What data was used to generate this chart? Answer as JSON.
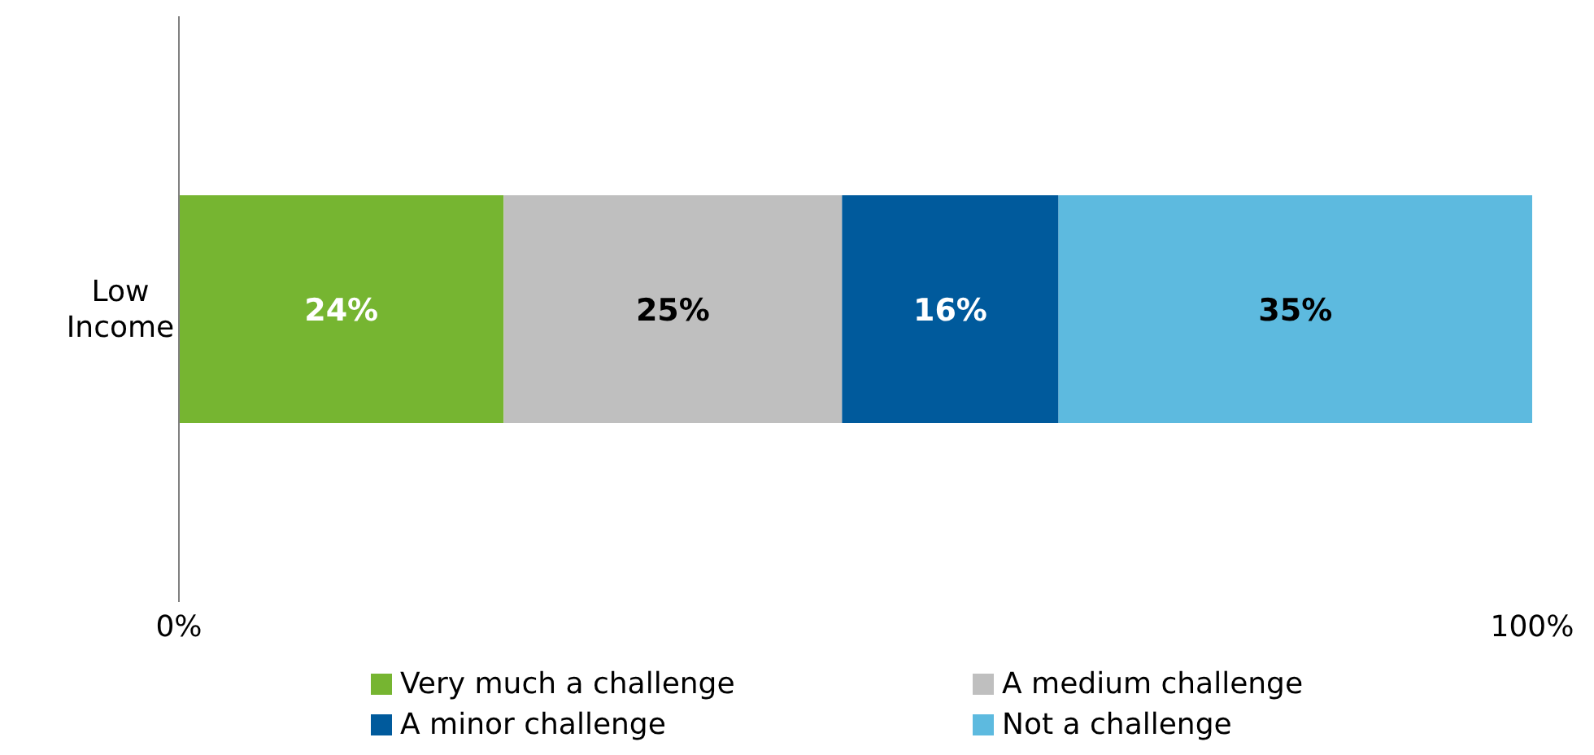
{
  "chart_data": {
    "type": "bar",
    "orientation": "horizontal",
    "stacked": true,
    "categories": [
      "Low Income"
    ],
    "series": [
      {
        "name": "Very much a challenge",
        "color": "#76b531",
        "values": [
          24
        ],
        "value_labels": [
          "24%"
        ]
      },
      {
        "name": "A medium challenge",
        "color": "#bfbfbf",
        "values": [
          25
        ],
        "value_labels": [
          "25%"
        ]
      },
      {
        "name": "A minor challenge",
        "color": "#005a9c",
        "values": [
          16
        ],
        "value_labels": [
          "16%"
        ]
      },
      {
        "name": "Not a challenge",
        "color": "#5dbadf",
        "values": [
          35
        ],
        "value_labels": [
          "35%"
        ]
      }
    ],
    "xlim": [
      0,
      100
    ],
    "xticks": [
      {
        "value": 0,
        "label": "0%"
      },
      {
        "value": 100,
        "label": "100%"
      }
    ],
    "grid": false,
    "legend": "bottom"
  }
}
